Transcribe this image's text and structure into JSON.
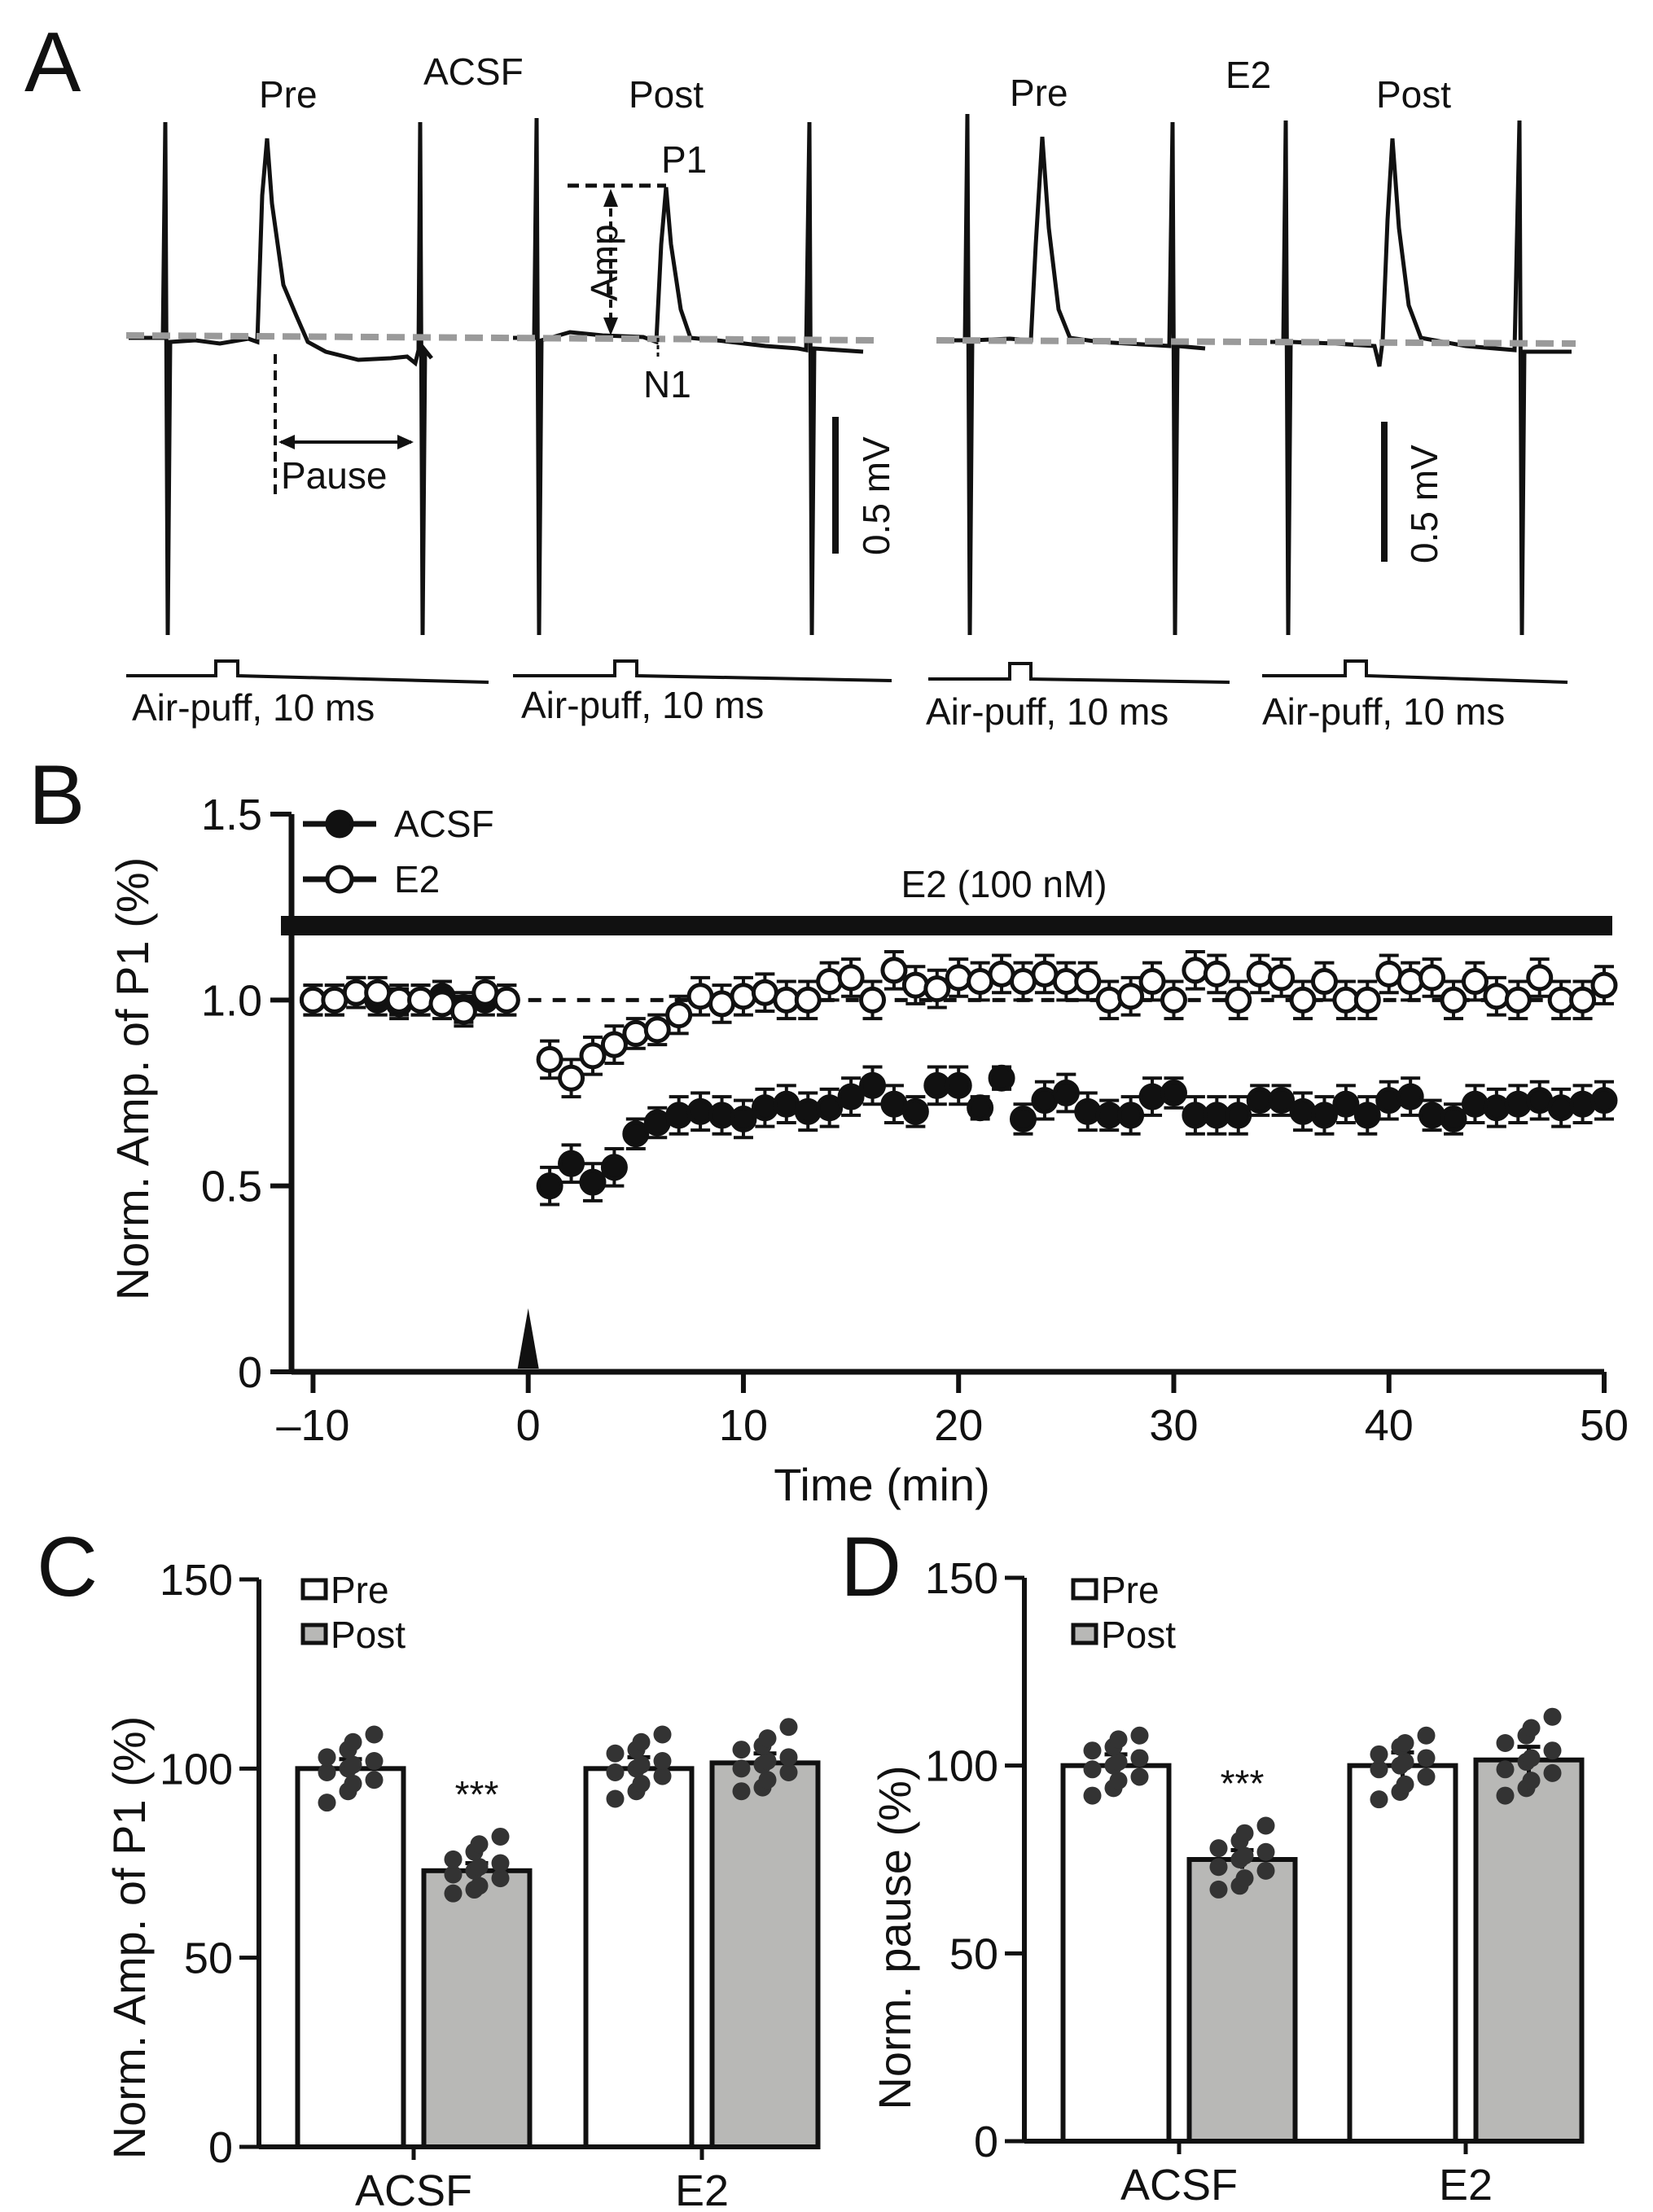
{
  "panel_a": {
    "letter": "A",
    "groups": [
      {
        "condition": "ACSF",
        "pre": "Pre",
        "post": "Post"
      },
      {
        "condition": "E2",
        "pre": "Pre",
        "post": "Post"
      }
    ],
    "annotations": {
      "p1": "P1",
      "n1": "N1",
      "amp": "Amp",
      "pause": "Pause"
    },
    "scale_bar": "0.5 mV",
    "stimulus": "Air-puff, 10 ms"
  },
  "panel_b": {
    "letter": "B"
  },
  "panel_c": {
    "letter": "C"
  },
  "panel_d": {
    "letter": "D"
  },
  "chart_data": [
    {
      "id": "B",
      "type": "scatter",
      "title": "",
      "xlabel": "Time (min)",
      "ylabel": "Norm. Amp. of P1 (%)",
      "xlim": [
        -10,
        50
      ],
      "ylim": [
        0,
        1.5
      ],
      "xticks": [
        {
          "v": -10,
          "label": "–10"
        },
        {
          "v": 0,
          "label": "0"
        },
        {
          "v": 10,
          "label": "10"
        },
        {
          "v": 20,
          "label": "20"
        },
        {
          "v": 30,
          "label": "30"
        },
        {
          "v": 40,
          "label": "40"
        },
        {
          "v": 50,
          "label": "50"
        }
      ],
      "yticks": [
        {
          "v": 0,
          "label": "0"
        },
        {
          "v": 0.5,
          "label": "0.5"
        },
        {
          "v": 1.0,
          "label": "1.0"
        },
        {
          "v": 1.5,
          "label": "1.5"
        }
      ],
      "drug_bar": {
        "label": "E2 (100 nM)",
        "y": 1.2,
        "x_start": -10,
        "x_end": 50
      },
      "baseline": {
        "y": 1.0,
        "x_start": 0,
        "x_end": 50
      },
      "application_marker_x": 0,
      "legend": [
        "ACSF",
        "E2"
      ],
      "x": [
        -10,
        -9,
        -8,
        -7,
        -6,
        -5,
        -4,
        -3,
        -2,
        -1,
        1,
        2,
        3,
        4,
        5,
        6,
        7,
        8,
        9,
        10,
        11,
        12,
        13,
        14,
        15,
        16,
        17,
        18,
        19,
        20,
        21,
        22,
        23,
        24,
        25,
        26,
        27,
        28,
        29,
        30,
        31,
        32,
        33,
        34,
        35,
        36,
        37,
        38,
        39,
        40,
        41,
        42,
        43,
        44,
        45,
        46,
        47,
        48,
        49,
        50
      ],
      "series": [
        {
          "name": "ACSF",
          "marker": "filled",
          "values": [
            1.0,
            1.0,
            1.02,
            1.0,
            0.99,
            1.0,
            1.01,
            0.98,
            1.0,
            1.0,
            0.5,
            0.56,
            0.51,
            0.55,
            0.64,
            0.67,
            0.69,
            0.7,
            0.69,
            0.68,
            0.71,
            0.72,
            0.7,
            0.71,
            0.74,
            0.77,
            0.72,
            0.7,
            0.77,
            0.77,
            0.71,
            0.79,
            0.68,
            0.73,
            0.75,
            0.7,
            0.69,
            0.69,
            0.74,
            0.75,
            0.69,
            0.69,
            0.69,
            0.73,
            0.73,
            0.7,
            0.69,
            0.72,
            0.69,
            0.73,
            0.74,
            0.69,
            0.68,
            0.72,
            0.71,
            0.72,
            0.73,
            0.71,
            0.72,
            0.73
          ],
          "errors": [
            0.04,
            0.04,
            0.04,
            0.04,
            0.04,
            0.04,
            0.04,
            0.04,
            0.04,
            0.04,
            0.05,
            0.05,
            0.05,
            0.05,
            0.04,
            0.04,
            0.05,
            0.05,
            0.05,
            0.05,
            0.05,
            0.05,
            0.05,
            0.05,
            0.05,
            0.05,
            0.05,
            0.04,
            0.05,
            0.05,
            0.03,
            0.03,
            0.04,
            0.05,
            0.05,
            0.05,
            0.04,
            0.05,
            0.05,
            0.04,
            0.05,
            0.05,
            0.05,
            0.04,
            0.04,
            0.05,
            0.05,
            0.05,
            0.05,
            0.05,
            0.05,
            0.04,
            0.04,
            0.05,
            0.05,
            0.05,
            0.05,
            0.05,
            0.05,
            0.05
          ]
        },
        {
          "name": "E2",
          "marker": "open",
          "values": [
            1.0,
            1.0,
            1.02,
            1.02,
            1.0,
            1.0,
            0.99,
            0.97,
            1.02,
            1.0,
            0.84,
            0.79,
            0.85,
            0.88,
            0.91,
            0.92,
            0.96,
            1.01,
            0.99,
            1.01,
            1.02,
            1.0,
            1.0,
            1.05,
            1.06,
            1.0,
            1.08,
            1.04,
            1.03,
            1.06,
            1.05,
            1.07,
            1.05,
            1.07,
            1.05,
            1.05,
            1.0,
            1.01,
            1.05,
            1.0,
            1.08,
            1.07,
            1.0,
            1.07,
            1.06,
            1.0,
            1.05,
            1.0,
            1.0,
            1.07,
            1.05,
            1.06,
            1.0,
            1.05,
            1.01,
            1.0,
            1.06,
            1.0,
            1.0,
            1.04
          ],
          "errors": [
            0.04,
            0.04,
            0.04,
            0.04,
            0.04,
            0.04,
            0.04,
            0.04,
            0.04,
            0.04,
            0.05,
            0.05,
            0.05,
            0.05,
            0.04,
            0.04,
            0.05,
            0.05,
            0.05,
            0.05,
            0.05,
            0.05,
            0.05,
            0.05,
            0.05,
            0.05,
            0.05,
            0.05,
            0.05,
            0.05,
            0.05,
            0.05,
            0.05,
            0.05,
            0.05,
            0.05,
            0.05,
            0.05,
            0.05,
            0.05,
            0.05,
            0.05,
            0.05,
            0.05,
            0.05,
            0.05,
            0.05,
            0.05,
            0.05,
            0.05,
            0.05,
            0.05,
            0.05,
            0.05,
            0.05,
            0.05,
            0.05,
            0.05,
            0.05,
            0.05
          ]
        }
      ]
    },
    {
      "id": "C",
      "type": "bar",
      "title": "",
      "ylabel": "Norm. Amp. of P1 (%)",
      "ylim": [
        0,
        150
      ],
      "yticks": [
        0,
        50,
        100,
        150
      ],
      "categories": [
        "ACSF",
        "E2"
      ],
      "legend": [
        "Pre",
        "Post"
      ],
      "series": [
        {
          "name": "Pre",
          "color": "#ffffff",
          "values": [
            100,
            100
          ],
          "errors": [
            2.5,
            3
          ],
          "points": [
            [
              91,
              94,
              96,
              97,
              99,
              100,
              101,
              102,
              103,
              105,
              107,
              109
            ],
            [
              92,
              94,
              96,
              98,
              99,
              100,
              101,
              102,
              104,
              105,
              107,
              109
            ]
          ]
        },
        {
          "name": "Post",
          "color": "#b8b8b6",
          "values": [
            73,
            101.5
          ],
          "errors": [
            2,
            2.5
          ],
          "points": [
            [
              67,
              68,
              69,
              71,
              72,
              73,
              74,
              75,
              76,
              78,
              80,
              82
            ],
            [
              94,
              95,
              97,
              99,
              100,
              101,
              102,
              103,
              105,
              106,
              108,
              111
            ]
          ]
        }
      ],
      "significance": [
        {
          "category": "ACSF",
          "series": "Post",
          "label": "***"
        }
      ]
    },
    {
      "id": "D",
      "type": "bar",
      "title": "",
      "ylabel": "Norm. pause (%)",
      "ylim": [
        0,
        150
      ],
      "yticks": [
        0,
        50,
        100,
        150
      ],
      "categories": [
        "ACSF",
        "E2"
      ],
      "legend": [
        "Pre",
        "Post"
      ],
      "series": [
        {
          "name": "Pre",
          "color": "#ffffff",
          "values": [
            100,
            100
          ],
          "errors": [
            3,
            3.5
          ],
          "points": [
            [
              92,
              94,
              96,
              97,
              99,
              100,
              101,
              102,
              104,
              105,
              107,
              108
            ],
            [
              91,
              93,
              95,
              97,
              99,
              100,
              101,
              102,
              103,
              105,
              106,
              108
            ]
          ]
        },
        {
          "name": "Post",
          "color": "#b8b8b6",
          "values": [
            75,
            101.5
          ],
          "errors": [
            2.5,
            3.5
          ],
          "points": [
            [
              67,
              68,
              70,
              72,
              73,
              75,
              76,
              77,
              78,
              80,
              82,
              84
            ],
            [
              92,
              94,
              96,
              98,
              99,
              101,
              102,
              104,
              106,
              108,
              110,
              113
            ]
          ]
        }
      ],
      "significance": [
        {
          "category": "ACSF",
          "series": "Post",
          "label": "***"
        }
      ]
    }
  ]
}
